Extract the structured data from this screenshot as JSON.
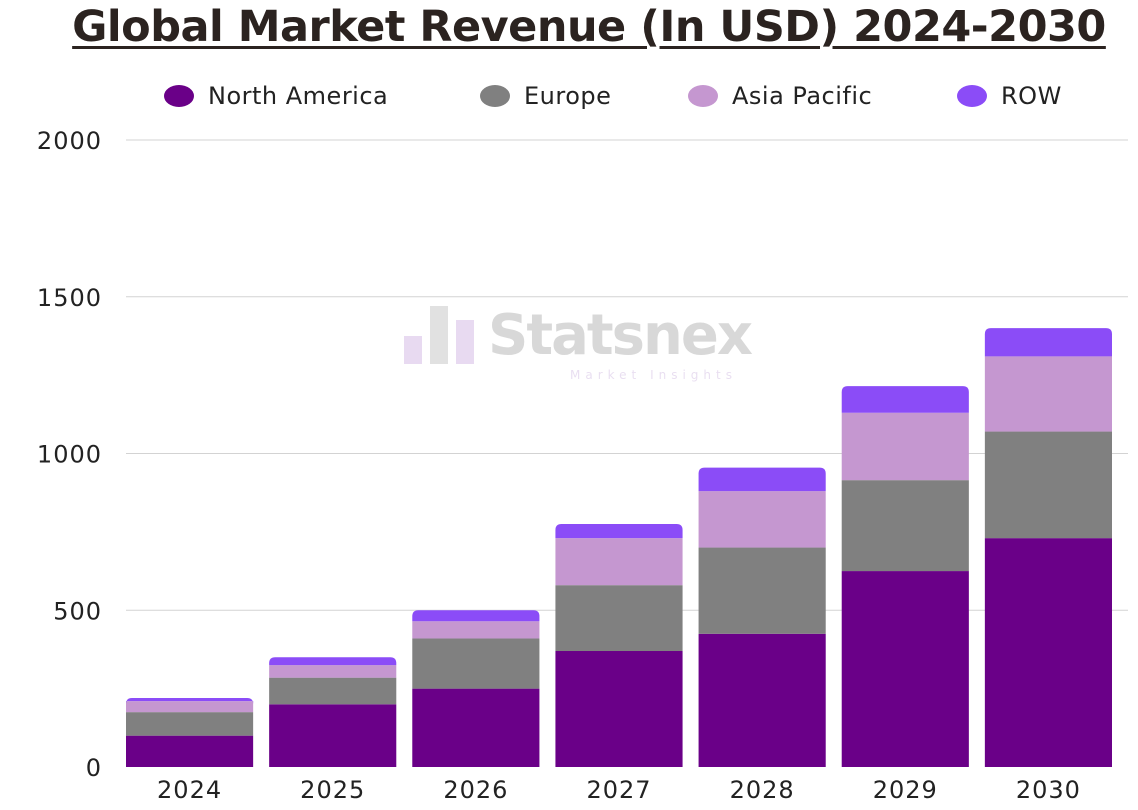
{
  "title": "Global Market Revenue (In USD) 2024-2030",
  "watermark": {
    "name": "Statsnex",
    "tagline": "Market Insights"
  },
  "colors": {
    "North America": "#6a0088",
    "Europe": "#808080",
    "Asia Pacific": "#c597d0",
    "ROW": "#8b4cf7",
    "grid": "#d3d3d3",
    "axis_text": "#222222"
  },
  "chart_data": {
    "type": "bar",
    "stacked": true,
    "categories": [
      "2024",
      "2025",
      "2026",
      "2027",
      "2028",
      "2029",
      "2030"
    ],
    "series": [
      {
        "name": "North America",
        "values": [
          100,
          200,
          250,
          370,
          425,
          625,
          730
        ]
      },
      {
        "name": "Europe",
        "values": [
          75,
          85,
          160,
          210,
          275,
          290,
          340
        ]
      },
      {
        "name": "Asia Pacific",
        "values": [
          35,
          40,
          55,
          150,
          180,
          215,
          240
        ]
      },
      {
        "name": "ROW",
        "values": [
          10,
          25,
          35,
          45,
          75,
          85,
          90
        ]
      }
    ],
    "ylim": [
      0,
      2000
    ],
    "yticks": [
      "0",
      "500",
      "1000",
      "1500",
      "2000"
    ],
    "legend_position": "top",
    "grid": true
  }
}
